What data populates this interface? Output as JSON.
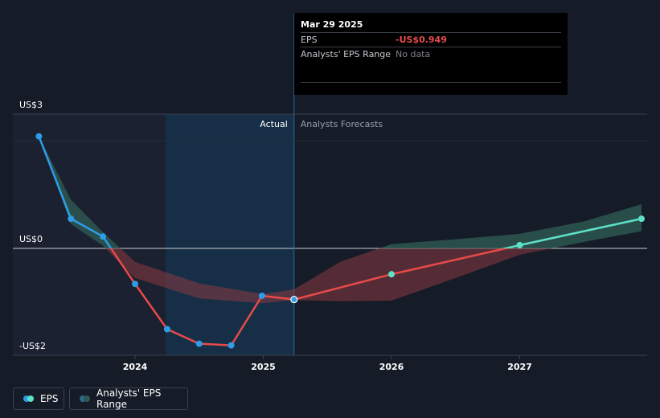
{
  "tooltip": {
    "date": "Mar 29 2025",
    "eps_label": "EPS",
    "eps_value": "-US$0.949",
    "range_label": "Analysts' EPS Range",
    "range_value": "No data"
  },
  "section_labels": {
    "actual": "Actual",
    "forecast": "Analysts Forecasts"
  },
  "legend": {
    "eps": "EPS",
    "range": "Analysts' EPS Range"
  },
  "colors": {
    "background": "#151b27",
    "eps_actual": "#2d9de8",
    "eps_forecast_line": "#e84a4a",
    "eps_positive_forecast": "#5fe0c8",
    "range_negative": "#8a3a42",
    "range_positive": "#2e5a52",
    "highlight": "#16324c"
  },
  "chart_data": {
    "type": "line",
    "y_ticks": [
      {
        "value": 3,
        "label": "US$3"
      },
      {
        "value": 0,
        "label": "US$0"
      },
      {
        "value": -2,
        "label": "-US$2"
      }
    ],
    "x_ticks": [
      {
        "value": 2024.0,
        "label": "2024"
      },
      {
        "value": 2025.0,
        "label": "2025"
      },
      {
        "value": 2026.0,
        "label": "2026"
      },
      {
        "value": 2027.0,
        "label": "2027"
      }
    ],
    "xlim": [
      2023.1,
      2027.95
    ],
    "ylim": [
      -2.0,
      2.5
    ],
    "actual_end": 2025.24,
    "series": [
      {
        "name": "EPS",
        "kind": "actual",
        "points": [
          [
            2023.25,
            2.08
          ],
          [
            2023.5,
            0.55
          ],
          [
            2023.75,
            0.22
          ],
          [
            2024.0,
            -0.66
          ],
          [
            2024.25,
            -1.5
          ],
          [
            2024.5,
            -1.77
          ],
          [
            2024.75,
            -1.8
          ],
          [
            2024.99,
            -0.88
          ],
          [
            2025.24,
            -0.949
          ]
        ]
      },
      {
        "name": "EPS",
        "kind": "forecast",
        "points": [
          [
            2025.24,
            -0.949
          ],
          [
            2026.0,
            -0.48
          ],
          [
            2027.0,
            0.06
          ],
          [
            2027.95,
            0.55
          ]
        ]
      }
    ],
    "range_band": {
      "x": [
        2023.25,
        2023.5,
        2023.75,
        2024.0,
        2024.5,
        2025.0,
        2025.24,
        2025.6,
        2026.0,
        2026.5,
        2027.0,
        2027.5,
        2027.95
      ],
      "upper": [
        2.08,
        0.9,
        0.3,
        -0.25,
        -0.65,
        -0.85,
        -0.76,
        -0.25,
        0.08,
        0.17,
        0.27,
        0.5,
        0.82
      ],
      "lower": [
        2.08,
        0.45,
        0.05,
        -0.55,
        -0.93,
        -1.02,
        -0.96,
        -0.98,
        -0.97,
        -0.55,
        -0.12,
        0.12,
        0.32
      ]
    }
  }
}
